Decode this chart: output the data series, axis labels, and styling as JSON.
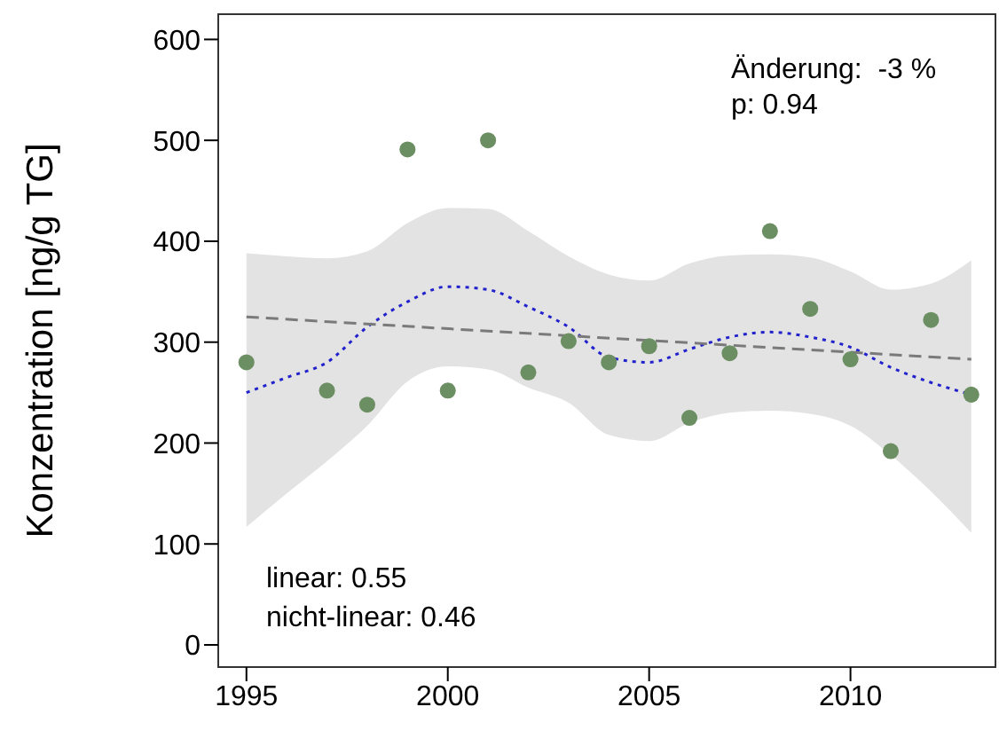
{
  "chart_data": {
    "type": "scatter",
    "ylabel": "Konzentration [ng/g TG]",
    "xlim": [
      1994.3,
      2013.6
    ],
    "xticks": [
      1995,
      2000,
      2005,
      2010
    ],
    "ylim": [
      -22,
      625
    ],
    "yticks": [
      0,
      100,
      200,
      300,
      400,
      500,
      600
    ],
    "annotations": [
      "Änderung:  -3 %",
      "p: 0.94",
      "linear: 0.55",
      "nicht-linear: 0.46"
    ],
    "series": [
      {
        "type": "line",
        "color": "#2222cc",
        "line_style": "dotted",
        "x": [
          1995,
          1996,
          1997,
          1998,
          1999,
          2000,
          2001,
          2002,
          2003,
          2004,
          2005,
          2006,
          2007,
          2008,
          2009,
          2010,
          2011,
          2012,
          2013
        ],
        "values": [
          250,
          265,
          280,
          315,
          340,
          355,
          352,
          335,
          315,
          285,
          280,
          293,
          305,
          310,
          305,
          295,
          275,
          260,
          248
        ],
        "lower": [
          117,
          150,
          182,
          217,
          261,
          276,
          273,
          255,
          240,
          208,
          202,
          220,
          230,
          232,
          229,
          217,
          188,
          152,
          111
        ],
        "upper": [
          388,
          385,
          383,
          390,
          418,
          433,
          432,
          410,
          385,
          367,
          361,
          378,
          386,
          387,
          384,
          370,
          352,
          358,
          381
        ]
      },
      {
        "type": "line",
        "color": "#7a7a7a",
        "line_style": "dashed",
        "x": [
          1995,
          2013
        ],
        "values": [
          325,
          283
        ]
      },
      {
        "color": "#6b8e62",
        "x": [
          1995,
          1997,
          1998,
          1999,
          2000,
          2001,
          2002,
          2003,
          2004,
          2005,
          2006,
          2007,
          2008,
          2009,
          2010,
          2011,
          2012,
          2013
        ],
        "values": [
          280,
          252,
          238,
          491,
          252,
          500,
          270,
          301,
          280,
          296,
          225,
          289,
          410,
          333,
          283,
          192,
          322,
          248
        ]
      }
    ]
  }
}
